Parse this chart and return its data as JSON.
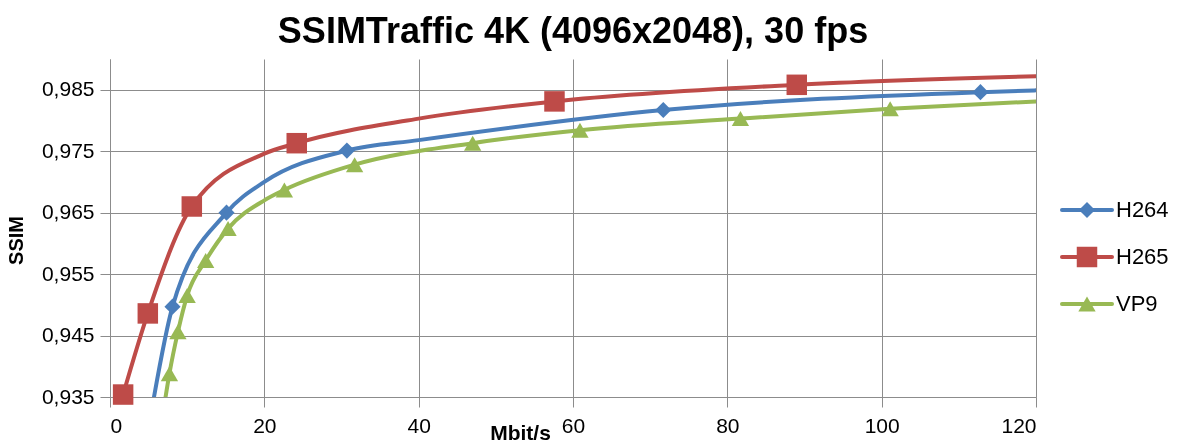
{
  "chart_data": {
    "type": "scatter",
    "title": "SSIMTraffic 4K (4096x2048), 30 fps",
    "xlabel": "Mbit/s",
    "ylabel": "SSIM",
    "xlim": [
      0,
      120
    ],
    "xticks": [
      0,
      20,
      40,
      60,
      80,
      100,
      120
    ],
    "ylim": [
      0.935,
      0.99
    ],
    "yticks": [
      {
        "value": 0.935,
        "label": "0,935"
      },
      {
        "value": 0.945,
        "label": "0,945"
      },
      {
        "value": 0.955,
        "label": "0,955"
      },
      {
        "value": 0.965,
        "label": "0,965"
      },
      {
        "value": 0.975,
        "label": "0,975"
      },
      {
        "value": 0.985,
        "label": "0,985"
      }
    ],
    "grid": true,
    "legend": "right",
    "line_style": "solid",
    "series": [
      {
        "type": "line",
        "color": "#4a7ebb",
        "x": [
          5.7,
          8.1,
          15.1,
          20,
          30.7,
          40,
          71.7,
          112.8,
          120
        ],
        "values": [
          0.935,
          0.9497,
          0.965,
          0.97,
          0.9751,
          0.9768,
          0.9817,
          0.9846,
          0.9849
        ]
      },
      {
        "type": "line",
        "color": "#be4b48",
        "x": [
          1.7,
          4.9,
          10.6,
          20,
          24.2,
          40,
          57.6,
          89.0,
          120
        ],
        "values": [
          0.9354,
          0.9486,
          0.966,
          0.9746,
          0.9763,
          0.9803,
          0.9831,
          0.9858,
          0.9872
        ]
      },
      {
        "type": "line",
        "color": "#98b954",
        "x": [
          7.2,
          7.7,
          8.8,
          10.0,
          12.4,
          15.3,
          20,
          22.6,
          31.7,
          47.0,
          60.9,
          81.7,
          101.1,
          120
        ],
        "values": [
          0.935,
          0.9388,
          0.9456,
          0.9515,
          0.9572,
          0.9624,
          0.967,
          0.9687,
          0.9728,
          0.9763,
          0.9784,
          0.9803,
          0.9819,
          0.9831
        ]
      },
      {
        "name": "H264",
        "marker": "diamond",
        "color": "#4a7ebb",
        "x": [
          8.1,
          15.1,
          30.7,
          71.7,
          112.8
        ],
        "values": [
          0.9497,
          0.965,
          0.9751,
          0.9817,
          0.9846
        ]
      },
      {
        "name": "H265",
        "marker": "square",
        "color": "#be4b48",
        "x": [
          1.7,
          4.9,
          10.6,
          24.2,
          57.6,
          89.0
        ],
        "values": [
          0.9354,
          0.9486,
          0.966,
          0.9763,
          0.9831,
          0.9858
        ]
      },
      {
        "name": "VP9",
        "marker": "triangle",
        "color": "#98b954",
        "x": [
          7.7,
          8.8,
          10.0,
          12.4,
          15.3,
          22.6,
          31.7,
          47.0,
          60.9,
          81.7,
          101.1
        ],
        "values": [
          0.9388,
          0.9456,
          0.9515,
          0.9572,
          0.9624,
          0.9687,
          0.9728,
          0.9763,
          0.9784,
          0.9803,
          0.9819
        ]
      }
    ]
  }
}
